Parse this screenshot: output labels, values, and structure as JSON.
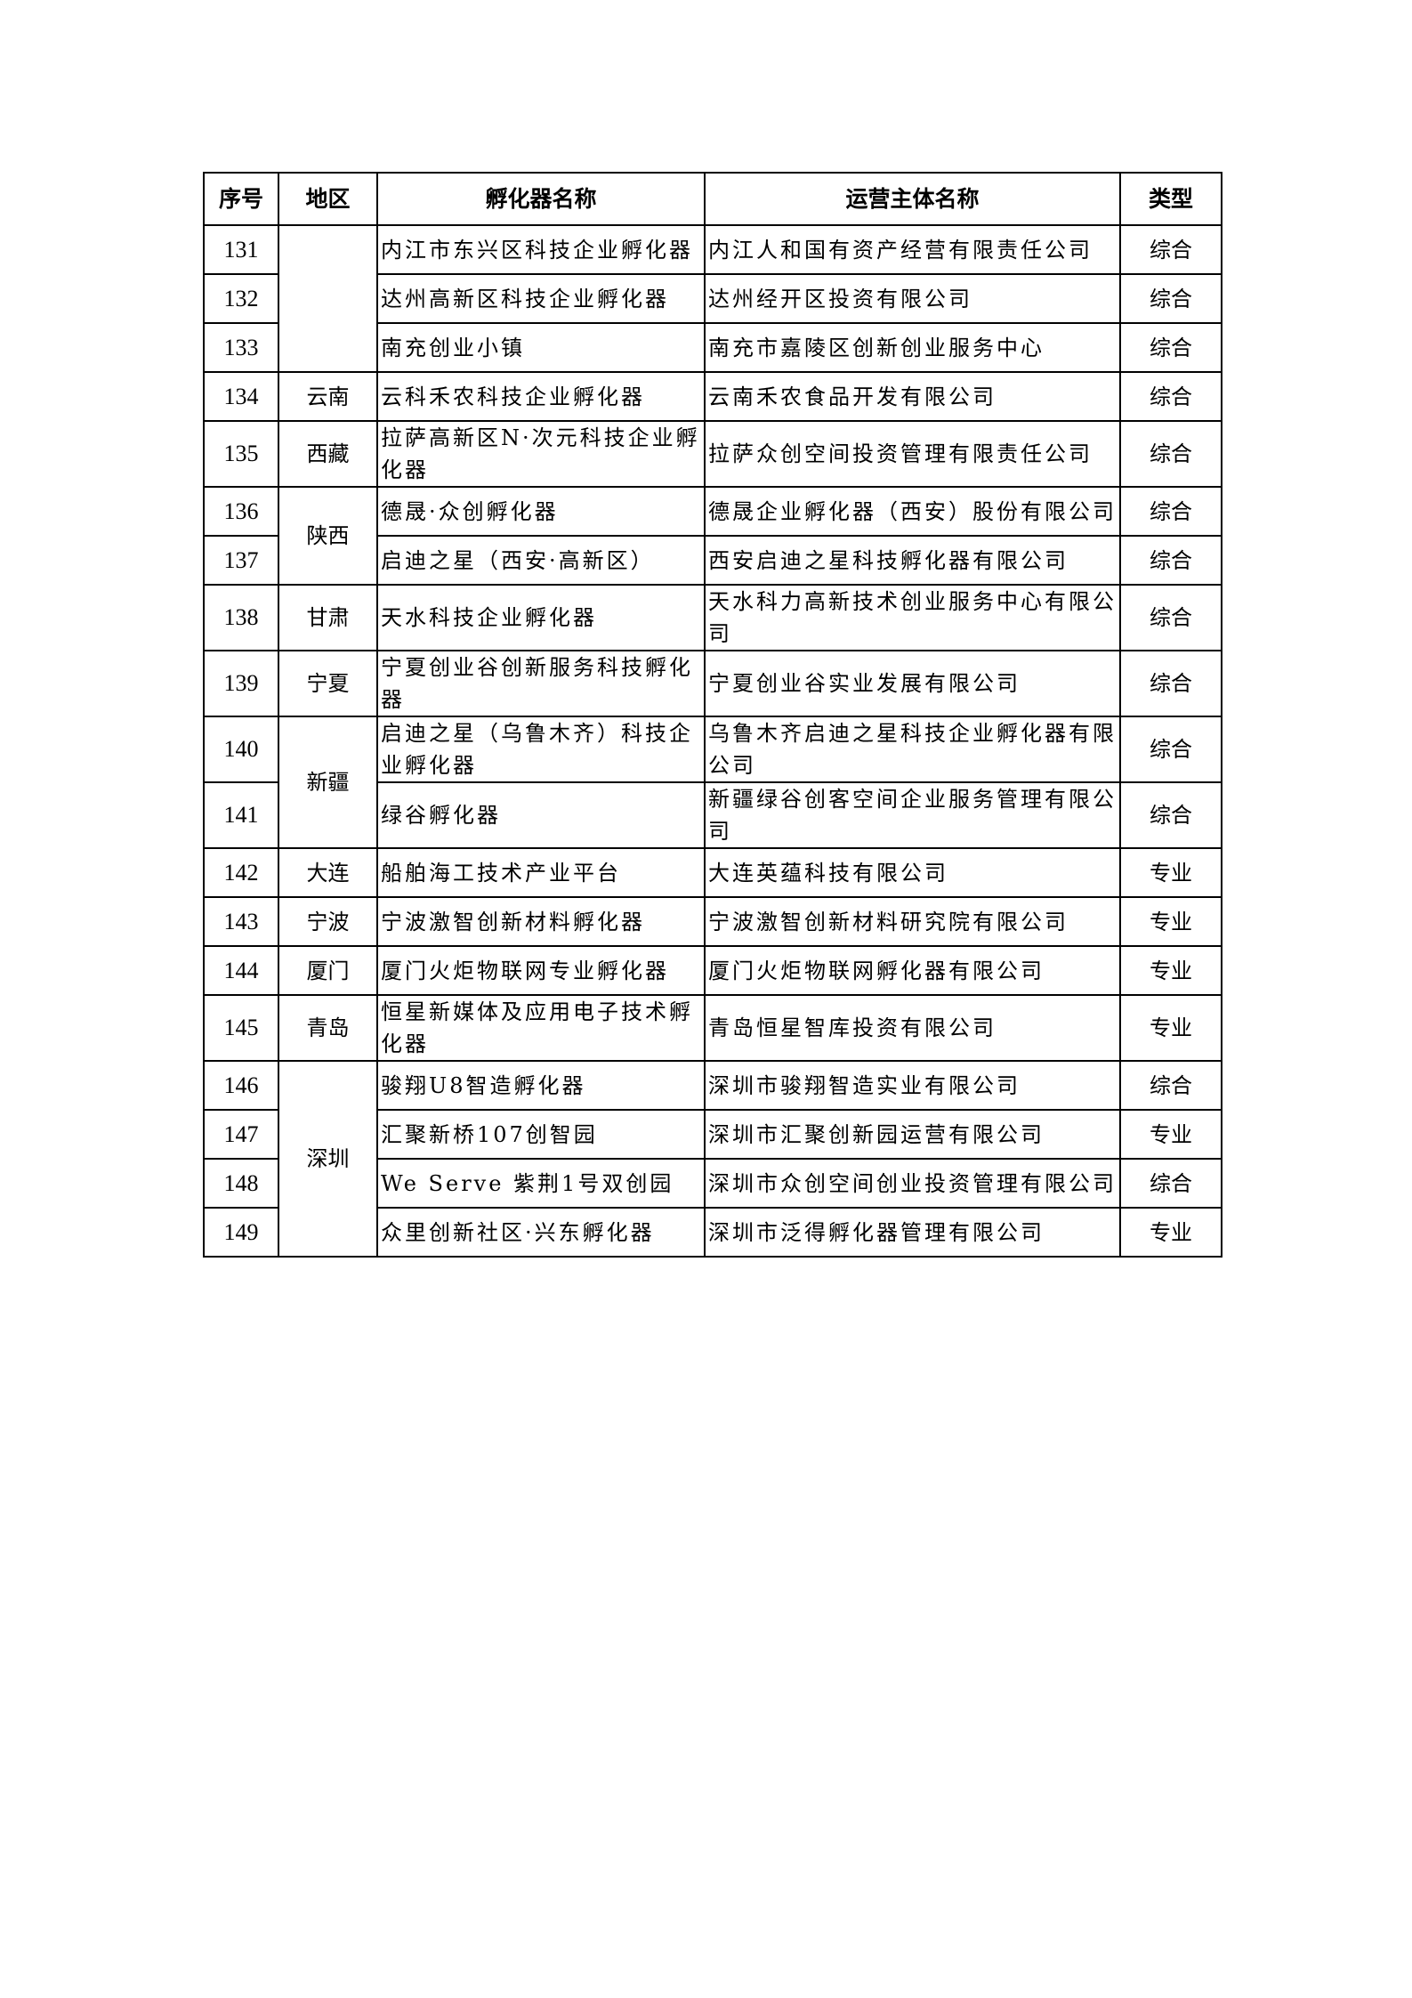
{
  "table": {
    "headers": [
      "序号",
      "地区",
      "孵化器名称",
      "运营主体名称",
      "类型"
    ],
    "rows": [
      {
        "no": "131",
        "region": "",
        "region_span": 3,
        "name": "内江市东兴区科技企业孵化器",
        "operator": "内江人和国有资产经营有限责任公司",
        "type": "综合"
      },
      {
        "no": "132",
        "name": "达州高新区科技企业孵化器",
        "operator": "达州经开区投资有限公司",
        "type": "综合"
      },
      {
        "no": "133",
        "name": "南充创业小镇",
        "operator": "南充市嘉陵区创新创业服务中心",
        "type": "综合"
      },
      {
        "no": "134",
        "region": "云南",
        "region_span": 1,
        "name": "云科禾农科技企业孵化器",
        "operator": "云南禾农食品开发有限公司",
        "type": "综合"
      },
      {
        "no": "135",
        "region": "西藏",
        "region_span": 1,
        "name": "拉萨高新区N·次元科技企业孵化器",
        "operator": "拉萨众创空间投资管理有限责任公司",
        "type": "综合"
      },
      {
        "no": "136",
        "region": "陕西",
        "region_span": 2,
        "name": "德晟·众创孵化器",
        "operator": "德晟企业孵化器（西安）股份有限公司",
        "type": "综合"
      },
      {
        "no": "137",
        "name": "启迪之星（西安·高新区）",
        "operator": "西安启迪之星科技孵化器有限公司",
        "type": "综合"
      },
      {
        "no": "138",
        "region": "甘肃",
        "region_span": 1,
        "name": "天水科技企业孵化器",
        "operator": "天水科力高新技术创业服务中心有限公司",
        "type": "综合"
      },
      {
        "no": "139",
        "region": "宁夏",
        "region_span": 1,
        "name": "宁夏创业谷创新服务科技孵化器",
        "operator": "宁夏创业谷实业发展有限公司",
        "type": "综合"
      },
      {
        "no": "140",
        "region": "新疆",
        "region_span": 2,
        "name": "启迪之星（乌鲁木齐）科技企业孵化器",
        "operator": "乌鲁木齐启迪之星科技企业孵化器有限公司",
        "type": "综合"
      },
      {
        "no": "141",
        "name": "绿谷孵化器",
        "operator": "新疆绿谷创客空间企业服务管理有限公司",
        "type": "综合"
      },
      {
        "no": "142",
        "region": "大连",
        "region_span": 1,
        "name": "船舶海工技术产业平台",
        "operator": "大连英蕴科技有限公司",
        "type": "专业"
      },
      {
        "no": "143",
        "region": "宁波",
        "region_span": 1,
        "name": "宁波激智创新材料孵化器",
        "operator": "宁波激智创新材料研究院有限公司",
        "type": "专业"
      },
      {
        "no": "144",
        "region": "厦门",
        "region_span": 1,
        "name": "厦门火炬物联网专业孵化器",
        "operator": "厦门火炬物联网孵化器有限公司",
        "type": "专业"
      },
      {
        "no": "145",
        "region": "青岛",
        "region_span": 1,
        "name": "恒星新媒体及应用电子技术孵化器",
        "operator": "青岛恒星智库投资有限公司",
        "type": "专业"
      },
      {
        "no": "146",
        "region": "深圳",
        "region_span": 4,
        "name": "骏翔U8智造孵化器",
        "operator": "深圳市骏翔智造实业有限公司",
        "type": "综合"
      },
      {
        "no": "147",
        "name": "汇聚新桥107创智园",
        "operator": "深圳市汇聚创新园运营有限公司",
        "type": "专业"
      },
      {
        "no": "148",
        "name": "We Serve 紫荆1号双创园",
        "operator": "深圳市众创空间创业投资管理有限公司",
        "type": "综合"
      },
      {
        "no": "149",
        "name": "众里创新社区·兴东孵化器",
        "operator": "深圳市泛得孵化器管理有限公司",
        "type": "专业"
      }
    ]
  }
}
